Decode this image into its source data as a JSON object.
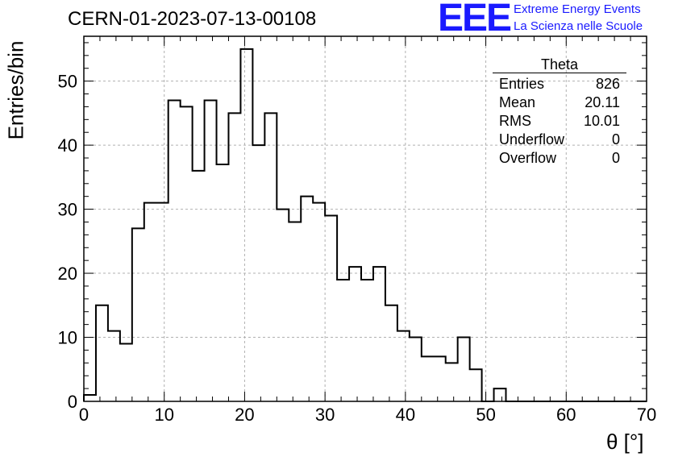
{
  "title": "CERN-01-2023-07-13-00108",
  "logo": {
    "mark": "EEE",
    "line1": "Extreme Energy Events",
    "line2": "La Scienza nelle Scuole",
    "color": "#1a1aff"
  },
  "stats": {
    "title": "Theta",
    "rows": [
      {
        "label": "Entries",
        "value": "826"
      },
      {
        "label": "Mean",
        "value": "20.11"
      },
      {
        "label": "RMS",
        "value": "10.01"
      },
      {
        "label": "Underflow",
        "value": "0"
      },
      {
        "label": "Overflow",
        "value": "0"
      }
    ]
  },
  "chart_data": {
    "type": "histogram",
    "xlabel": "θ [°]",
    "ylabel": "Entries/bin",
    "xlim": [
      0,
      70
    ],
    "ylim": [
      0,
      57
    ],
    "grid": true,
    "bin_width": 1.5,
    "x_ticks": [
      0,
      10,
      20,
      30,
      40,
      50,
      60,
      70
    ],
    "y_ticks": [
      0,
      10,
      20,
      30,
      40,
      50
    ],
    "bin_edges": [
      0,
      1.5,
      3,
      4.5,
      6,
      7.5,
      9,
      10.5,
      12,
      13.5,
      15,
      16.5,
      18,
      19.5,
      21,
      22.5,
      24,
      25.5,
      27,
      28.5,
      30,
      31.5,
      33,
      34.5,
      36,
      37.5,
      39,
      40.5,
      42,
      43.5,
      45,
      46.5,
      48,
      49.5,
      51,
      52.5,
      54,
      55.5,
      57,
      58.5,
      60,
      61.5,
      63,
      64.5,
      66,
      67.5,
      69,
      70
    ],
    "counts": [
      1,
      15,
      11,
      9,
      27,
      31,
      31,
      47,
      46,
      36,
      47,
      37,
      45,
      55,
      40,
      45,
      30,
      28,
      32,
      31,
      29,
      19,
      21,
      19,
      21,
      15,
      11,
      10,
      7,
      7,
      6,
      10,
      5,
      0,
      2,
      0,
      0,
      0,
      0,
      0,
      0,
      0,
      0,
      0,
      0,
      0,
      0
    ]
  }
}
